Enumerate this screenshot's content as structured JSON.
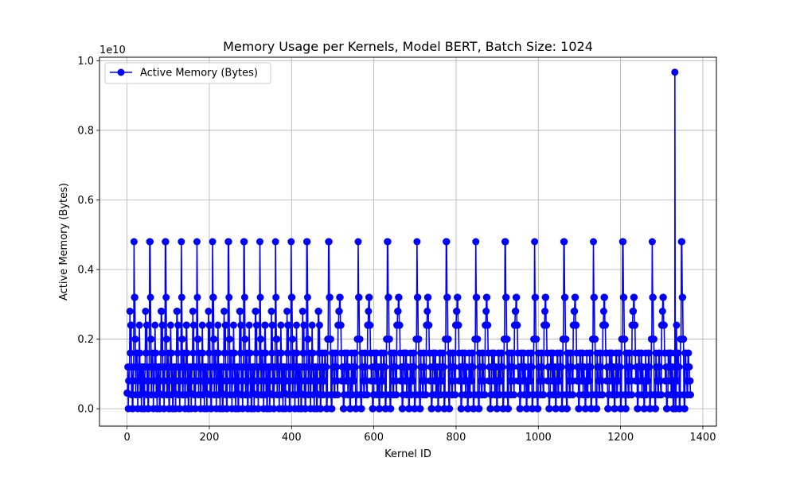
{
  "chart_data": {
    "type": "line",
    "title": "Memory Usage per Kernels, Model BERT, Batch Size: 1024",
    "xlabel": "Kernel ID",
    "ylabel": "Active Memory (Bytes)",
    "y_scale_label": "1e10",
    "y_scale": 10000000000,
    "xlim": [
      -67,
      1433
    ],
    "ylim": [
      -0.05,
      1.01
    ],
    "x_ticks": [
      0,
      200,
      400,
      600,
      800,
      1000,
      1200,
      1400
    ],
    "x_tick_labels": [
      "0",
      "200",
      "400",
      "600",
      "800",
      "1000",
      "1200",
      "1400"
    ],
    "y_ticks": [
      0.0,
      0.2,
      0.4,
      0.6,
      0.8,
      1.0
    ],
    "y_tick_labels": [
      "0.0",
      "0.2",
      "0.4",
      "0.6",
      "0.8",
      "1.0"
    ],
    "grid": true,
    "legend_position": "upper-left",
    "series": [
      {
        "name": "Active Memory (Bytes)",
        "color": "#0000ff",
        "marker": "circle",
        "unit_note": "y values in units of 1e10 bytes",
        "segments": [
          {
            "x_start": 0,
            "x_end": 470,
            "period": 38.2,
            "pattern": [
              0.045,
              0.12,
              0.0,
              0.08,
              0.12,
              0.28,
              0.16,
              0.24,
              0.04,
              0.12,
              0.0,
              0.08,
              0.12,
              0.48,
              0.32,
              0.2,
              0.04,
              0.12,
              0.16,
              0.12,
              0.0,
              0.08,
              0.12,
              0.24,
              0.16,
              0.04,
              0.12,
              0.0,
              0.08,
              0.12
            ]
          },
          {
            "x_start": 470,
            "x_end": 1370,
            "period": 71.5,
            "pattern": [
              0.0,
              0.08,
              0.16,
              0.04,
              0.12,
              0.08,
              0.16,
              0.12,
              0.0,
              0.04,
              0.2,
              0.48,
              0.32,
              0.2,
              0.04,
              0.0,
              0.16,
              0.12,
              0.08,
              0.04,
              0.16,
              0.12,
              0.08,
              0.04,
              0.24,
              0.28,
              0.32,
              0.24,
              0.16,
              0.08,
              0.12,
              0.0,
              0.04,
              0.16,
              0.12,
              0.08,
              0.16,
              0.04,
              0.12,
              0.08
            ]
          }
        ],
        "extra_points": [
          {
            "x": 1330,
            "y": 0.0
          },
          {
            "x": 1332,
            "y": 0.967
          },
          {
            "x": 1334,
            "y": 0.0
          },
          {
            "x": 1336,
            "y": 0.24
          }
        ]
      }
    ]
  }
}
